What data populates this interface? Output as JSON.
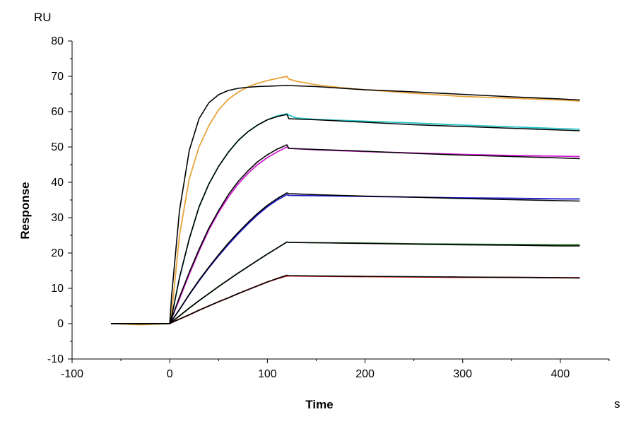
{
  "chart_data": {
    "type": "line",
    "title": "",
    "xlabel": "Time",
    "ylabel": "Response",
    "x_unit": "s",
    "y_unit": "RU",
    "xlim": [
      -100,
      450
    ],
    "ylim": [
      -10,
      80
    ],
    "x_ticks": [
      -100,
      0,
      100,
      200,
      300,
      400
    ],
    "y_ticks": [
      -10,
      0,
      10,
      20,
      30,
      40,
      50,
      60,
      70,
      80
    ],
    "x_tick_labels": [
      "-100",
      "0",
      "100",
      "200",
      "300",
      "400"
    ],
    "y_tick_labels": [
      "-10",
      "0",
      "10",
      "20",
      "30",
      "40",
      "50",
      "60",
      "70",
      "80"
    ],
    "grid": false,
    "legend": "none",
    "series": [
      {
        "color": "#E8A33A",
        "kind": "measured",
        "x": [
          -60,
          -30,
          0,
          2,
          10,
          20,
          30,
          40,
          50,
          60,
          70,
          80,
          90,
          100,
          110,
          120,
          122,
          130,
          150,
          175,
          200,
          250,
          300,
          350,
          400,
          420
        ],
        "y": [
          0,
          -0.3,
          0,
          3,
          25,
          41,
          50,
          56,
          60.5,
          63.5,
          65.5,
          67,
          68,
          68.8,
          69.4,
          70,
          69.2,
          68.6,
          67.6,
          66.8,
          66.2,
          65.2,
          64.3,
          63.8,
          63.3,
          63
        ]
      },
      {
        "color": "#000000",
        "kind": "fit",
        "x": [
          -60,
          -30,
          0,
          2,
          10,
          20,
          30,
          40,
          50,
          60,
          70,
          80,
          90,
          100,
          110,
          120,
          150,
          200,
          250,
          300,
          350,
          400,
          420
        ],
        "y": [
          0,
          -0.1,
          0,
          8,
          32,
          49,
          58,
          62.5,
          64.8,
          66,
          66.6,
          66.9,
          67.1,
          67.2,
          67.3,
          67.4,
          67.1,
          66.2,
          65.6,
          64.9,
          64.2,
          63.6,
          63.3
        ]
      },
      {
        "color": "#22C3C6",
        "kind": "measured",
        "x": [
          -60,
          0,
          2,
          10,
          20,
          30,
          40,
          50,
          60,
          70,
          80,
          90,
          100,
          110,
          120,
          122,
          130,
          150,
          200,
          250,
          300,
          350,
          400,
          420
        ],
        "y": [
          0,
          0,
          2,
          13,
          24,
          33,
          39.5,
          44.5,
          48.5,
          51.8,
          54.3,
          56.2,
          57.7,
          58.8,
          59.4,
          59,
          58.2,
          57.8,
          57.3,
          56.8,
          56.2,
          55.7,
          55.2,
          55
        ]
      },
      {
        "color": "#000000",
        "kind": "fit",
        "x": [
          -60,
          0,
          2,
          10,
          20,
          30,
          40,
          50,
          60,
          70,
          80,
          90,
          100,
          110,
          120,
          122,
          150,
          200,
          250,
          300,
          350,
          400,
          420
        ],
        "y": [
          0,
          0,
          2,
          13,
          24,
          33,
          39.5,
          44.5,
          48.5,
          51.8,
          54.3,
          56.2,
          57.7,
          58.6,
          59.2,
          58,
          57.7,
          57,
          56.3,
          55.8,
          55.3,
          54.8,
          54.6
        ]
      },
      {
        "color": "#D21BD2",
        "kind": "measured",
        "x": [
          -60,
          0,
          2,
          10,
          20,
          30,
          40,
          50,
          60,
          70,
          80,
          90,
          100,
          110,
          120,
          122,
          150,
          200,
          250,
          300,
          350,
          400,
          420
        ],
        "y": [
          0,
          0,
          1.5,
          7,
          14,
          20.5,
          26.5,
          31.5,
          35.8,
          39.5,
          42.5,
          45,
          47,
          48.6,
          50,
          49.6,
          49.2,
          48.7,
          48.3,
          47.9,
          47.6,
          47.4,
          47.3
        ]
      },
      {
        "color": "#000000",
        "kind": "fit",
        "x": [
          -60,
          0,
          2,
          10,
          20,
          30,
          40,
          50,
          60,
          70,
          80,
          90,
          100,
          110,
          120,
          122,
          150,
          200,
          250,
          300,
          350,
          400,
          420
        ],
        "y": [
          0,
          0,
          1.5,
          7.5,
          14.5,
          21,
          27,
          32,
          36.5,
          40.2,
          43.2,
          45.8,
          47.8,
          49.4,
          50.6,
          49.6,
          49.3,
          48.8,
          48.2,
          47.7,
          47.3,
          46.9,
          46.7
        ]
      },
      {
        "color": "#1A1AC8",
        "kind": "measured",
        "x": [
          -60,
          0,
          2,
          10,
          20,
          30,
          40,
          50,
          60,
          70,
          80,
          90,
          100,
          110,
          120,
          122,
          150,
          200,
          250,
          300,
          350,
          400,
          420
        ],
        "y": [
          0,
          0,
          0.8,
          4,
          8.2,
          12.1,
          15.8,
          19.2,
          22.4,
          25.4,
          28.2,
          30.8,
          33.1,
          35,
          36.5,
          36.3,
          36.2,
          36,
          35.8,
          35.6,
          35.5,
          35.3,
          35.3
        ]
      },
      {
        "color": "#000000",
        "kind": "fit",
        "x": [
          -60,
          0,
          2,
          10,
          20,
          30,
          40,
          50,
          60,
          70,
          80,
          90,
          100,
          110,
          120,
          122,
          150,
          200,
          250,
          300,
          350,
          400,
          420
        ],
        "y": [
          0,
          0,
          0.8,
          4,
          8.3,
          12.3,
          16,
          19.5,
          22.8,
          25.8,
          28.6,
          31.2,
          33.5,
          35.4,
          37,
          36.8,
          36.5,
          36.1,
          35.8,
          35.4,
          35.1,
          34.8,
          34.7
        ]
      },
      {
        "color": "#1B6B1B",
        "kind": "measured",
        "x": [
          -60,
          0,
          2,
          10,
          20,
          30,
          40,
          50,
          60,
          70,
          80,
          90,
          100,
          110,
          120,
          122,
          150,
          200,
          250,
          300,
          350,
          400,
          420
        ],
        "y": [
          0,
          0,
          0.5,
          2.2,
          4.4,
          6.5,
          8.5,
          10.5,
          12.4,
          14.3,
          16.1,
          17.9,
          19.7,
          21.4,
          23.1,
          23,
          22.9,
          22.8,
          22.6,
          22.5,
          22.4,
          22.3,
          22.3
        ]
      },
      {
        "color": "#000000",
        "kind": "fit",
        "x": [
          -60,
          0,
          2,
          10,
          20,
          30,
          40,
          50,
          60,
          70,
          80,
          90,
          100,
          110,
          120,
          122,
          150,
          200,
          250,
          300,
          350,
          400,
          420
        ],
        "y": [
          0,
          0,
          0.5,
          2.2,
          4.4,
          6.5,
          8.5,
          10.5,
          12.4,
          14.3,
          16.1,
          17.9,
          19.7,
          21.4,
          23.1,
          23,
          22.9,
          22.7,
          22.5,
          22.3,
          22.2,
          22,
          22
        ]
      },
      {
        "color": "#D21A1A",
        "kind": "measured",
        "x": [
          -60,
          0,
          2,
          10,
          20,
          30,
          40,
          50,
          60,
          70,
          80,
          90,
          100,
          110,
          120,
          122,
          150,
          200,
          250,
          300,
          350,
          400,
          420
        ],
        "y": [
          0,
          0,
          0.3,
          1.3,
          2.5,
          3.8,
          5,
          6.2,
          7.3,
          8.5,
          9.6,
          10.7,
          11.8,
          12.7,
          13.5,
          13.5,
          13.4,
          13.3,
          13.2,
          13.1,
          13.1,
          13,
          13
        ]
      },
      {
        "color": "#000000",
        "kind": "fit",
        "x": [
          -60,
          0,
          2,
          10,
          20,
          30,
          40,
          50,
          60,
          70,
          80,
          90,
          100,
          110,
          120,
          122,
          150,
          200,
          250,
          300,
          350,
          400,
          420
        ],
        "y": [
          0,
          0,
          0.3,
          1.3,
          2.5,
          3.8,
          5,
          6.2,
          7.3,
          8.5,
          9.6,
          10.7,
          11.8,
          12.8,
          13.7,
          13.6,
          13.5,
          13.4,
          13.3,
          13.2,
          13.1,
          13,
          12.9
        ]
      }
    ]
  }
}
